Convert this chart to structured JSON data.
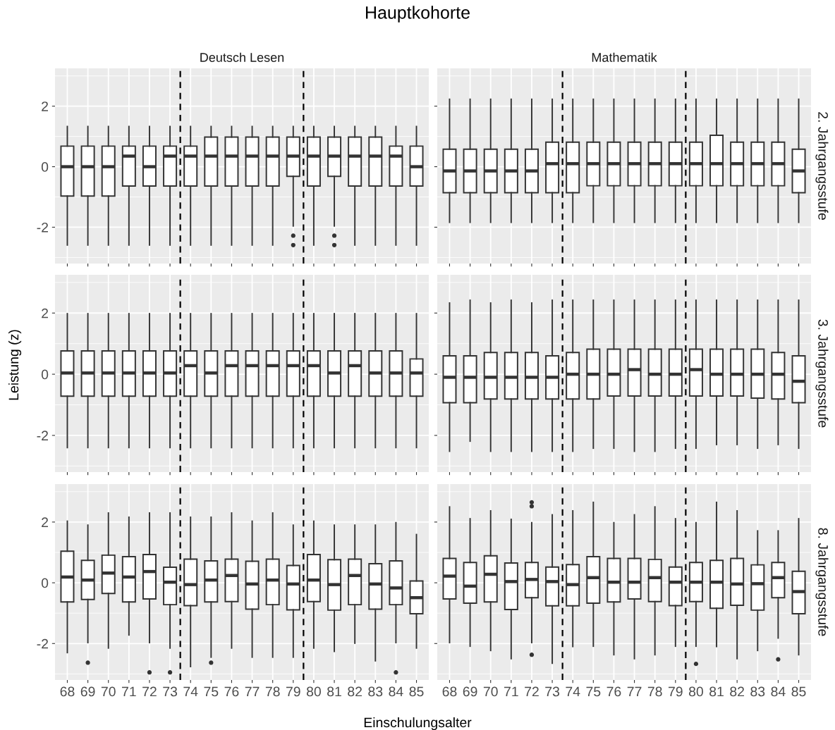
{
  "chart_data": [
    {
      "type": "box",
      "title": "Deutsch Lesen",
      "annotations": [
        "Hauptkohorte"
      ],
      "tick_labels": "y",
      "grid": true,
      "x": [
        68,
        69,
        70,
        71,
        72,
        73,
        74,
        75,
        76,
        77,
        78,
        79,
        80,
        81,
        82,
        83,
        84,
        85
      ],
      "xlim": [
        67.4,
        85.6
      ],
      "xticks": [
        68,
        69,
        70,
        71,
        72,
        73,
        74,
        75,
        76,
        77,
        78,
        79,
        80,
        81,
        82,
        83,
        84,
        85
      ],
      "ylim": [
        -3.2,
        3.25
      ],
      "yticks": [
        -2,
        0,
        2
      ],
      "ref_lines": [
        {
          "axis": "x",
          "value": 73.5,
          "line_style": "dashed",
          "color": "#000000"
        },
        {
          "axis": "x",
          "value": 79.5,
          "line_style": "dashed",
          "color": "#000000"
        }
      ],
      "boxes": [
        {
          "low": -2.59,
          "q1": -0.97,
          "median": 0,
          "q3": 0.68,
          "high": 1.33
        },
        {
          "low": -2.59,
          "q1": -0.97,
          "median": 0,
          "q3": 0.68,
          "high": 1.33
        },
        {
          "low": -2.59,
          "q1": -0.97,
          "median": 0,
          "q3": 0.68,
          "high": 1.33
        },
        {
          "low": -2.59,
          "q1": -0.64,
          "median": 0.35,
          "q3": 0.68,
          "high": 1.33
        },
        {
          "low": -2.59,
          "q1": -0.64,
          "median": 0,
          "q3": 0.68,
          "high": 1.33
        },
        {
          "low": -2.59,
          "q1": -0.64,
          "median": 0.35,
          "q3": 0.68,
          "high": 1.33
        },
        {
          "low": -2.59,
          "q1": -0.64,
          "median": 0.35,
          "q3": 0.68,
          "high": 1.33
        },
        {
          "low": -2.59,
          "q1": -0.64,
          "median": 0.35,
          "q3": 0.98,
          "high": 1.33
        },
        {
          "low": -2.59,
          "q1": -0.64,
          "median": 0.35,
          "q3": 0.98,
          "high": 1.33
        },
        {
          "low": -2.59,
          "q1": -0.64,
          "median": 0.35,
          "q3": 0.98,
          "high": 1.33
        },
        {
          "low": -2.59,
          "q1": -0.64,
          "median": 0.35,
          "q3": 0.98,
          "high": 1.33
        },
        {
          "low": -1.96,
          "q1": -0.32,
          "median": 0.35,
          "q3": 0.98,
          "high": 1.33,
          "outliers": [
            -2.28,
            -2.59
          ]
        },
        {
          "low": -2.59,
          "q1": -0.64,
          "median": 0.35,
          "q3": 0.98,
          "high": 1.33
        },
        {
          "low": -1.96,
          "q1": -0.32,
          "median": 0.35,
          "q3": 0.98,
          "high": 1.33,
          "outliers": [
            -2.28,
            -2.59
          ]
        },
        {
          "low": -2.59,
          "q1": -0.64,
          "median": 0.35,
          "q3": 0.98,
          "high": 1.33
        },
        {
          "low": -2.59,
          "q1": -0.64,
          "median": 0.35,
          "q3": 0.98,
          "high": 1.33
        },
        {
          "low": -2.59,
          "q1": -0.64,
          "median": 0.35,
          "q3": 0.68,
          "high": 1.33
        },
        {
          "low": -2.59,
          "q1": -0.64,
          "median": 0,
          "q3": 0.68,
          "high": 1.33
        }
      ]
    },
    {
      "type": "box",
      "title": "Mathematik",
      "y2label": "2. Jahrgangsstufe",
      "tick_labels": false,
      "grid": true,
      "x": [
        68,
        69,
        70,
        71,
        72,
        73,
        74,
        75,
        76,
        77,
        78,
        79,
        80,
        81,
        82,
        83,
        84,
        85
      ],
      "xlim": [
        67.4,
        85.6
      ],
      "xticks": [
        68,
        69,
        70,
        71,
        72,
        73,
        74,
        75,
        76,
        77,
        78,
        79,
        80,
        81,
        82,
        83,
        84,
        85
      ],
      "ylim": [
        -3.2,
        3.25
      ],
      "yticks": [
        -2,
        0,
        2
      ],
      "ref_lines": [
        {
          "axis": "x",
          "value": 73.5,
          "line_style": "dashed",
          "color": "#000000"
        },
        {
          "axis": "x",
          "value": 79.5,
          "line_style": "dashed",
          "color": "#000000"
        }
      ],
      "boxes": [
        {
          "low": -1.84,
          "q1": -0.86,
          "median": -0.14,
          "q3": 0.58,
          "high": 2.23
        },
        {
          "low": -1.84,
          "q1": -0.86,
          "median": -0.14,
          "q3": 0.58,
          "high": 2.23
        },
        {
          "low": -1.84,
          "q1": -0.86,
          "median": -0.14,
          "q3": 0.58,
          "high": 2.23
        },
        {
          "low": -1.84,
          "q1": -0.86,
          "median": -0.14,
          "q3": 0.58,
          "high": 2.23
        },
        {
          "low": -1.84,
          "q1": -0.86,
          "median": -0.14,
          "q3": 0.58,
          "high": 2.23
        },
        {
          "low": -1.84,
          "q1": -0.86,
          "median": 0.1,
          "q3": 0.81,
          "high": 2.23
        },
        {
          "low": -1.84,
          "q1": -0.86,
          "median": 0.1,
          "q3": 0.81,
          "high": 2.23
        },
        {
          "low": -1.84,
          "q1": -0.63,
          "median": 0.1,
          "q3": 0.81,
          "high": 2.23
        },
        {
          "low": -1.84,
          "q1": -0.63,
          "median": 0.1,
          "q3": 0.81,
          "high": 2.23
        },
        {
          "low": -1.84,
          "q1": -0.63,
          "median": 0.1,
          "q3": 0.81,
          "high": 2.23
        },
        {
          "low": -1.84,
          "q1": -0.63,
          "median": 0.1,
          "q3": 0.81,
          "high": 2.23
        },
        {
          "low": -1.84,
          "q1": -0.63,
          "median": 0.1,
          "q3": 0.81,
          "high": 2.23
        },
        {
          "low": -1.84,
          "q1": -0.63,
          "median": 0.1,
          "q3": 0.81,
          "high": 2.23
        },
        {
          "low": -1.84,
          "q1": -0.63,
          "median": 0.1,
          "q3": 1.04,
          "high": 2.23
        },
        {
          "low": -1.84,
          "q1": -0.63,
          "median": 0.1,
          "q3": 0.81,
          "high": 2.23
        },
        {
          "low": -1.84,
          "q1": -0.63,
          "median": 0.1,
          "q3": 0.81,
          "high": 2.23
        },
        {
          "low": -1.84,
          "q1": -0.63,
          "median": 0.1,
          "q3": 0.81,
          "high": 2.23
        },
        {
          "low": -1.84,
          "q1": -0.86,
          "median": -0.14,
          "q3": 0.58,
          "high": 2.23
        }
      ]
    },
    {
      "type": "box",
      "ylabel": "Leistung (z)",
      "tick_labels": "y",
      "grid": true,
      "x": [
        68,
        69,
        70,
        71,
        72,
        73,
        74,
        75,
        76,
        77,
        78,
        79,
        80,
        81,
        82,
        83,
        84,
        85
      ],
      "xlim": [
        67.4,
        85.6
      ],
      "xticks": [
        68,
        69,
        70,
        71,
        72,
        73,
        74,
        75,
        76,
        77,
        78,
        79,
        80,
        81,
        82,
        83,
        84,
        85
      ],
      "ylim": [
        -3.2,
        3.25
      ],
      "yticks": [
        -2,
        0,
        2
      ],
      "ref_lines": [
        {
          "axis": "x",
          "value": 73.5,
          "line_style": "dashed",
          "color": "#000000"
        },
        {
          "axis": "x",
          "value": 79.5,
          "line_style": "dashed",
          "color": "#000000"
        }
      ],
      "boxes": [
        {
          "low": -2.4,
          "q1": -0.72,
          "median": 0.04,
          "q3": 0.76,
          "high": 1.98
        },
        {
          "low": -2.4,
          "q1": -0.72,
          "median": 0.04,
          "q3": 0.76,
          "high": 1.98
        },
        {
          "low": -2.4,
          "q1": -0.72,
          "median": 0.04,
          "q3": 0.76,
          "high": 1.98
        },
        {
          "low": -2.4,
          "q1": -0.72,
          "median": 0.04,
          "q3": 0.76,
          "high": 1.98
        },
        {
          "low": -2.4,
          "q1": -0.72,
          "median": 0.04,
          "q3": 0.76,
          "high": 1.98
        },
        {
          "low": -2.4,
          "q1": -0.72,
          "median": 0.04,
          "q3": 0.76,
          "high": 1.98
        },
        {
          "low": -2.4,
          "q1": -0.72,
          "median": 0.28,
          "q3": 0.76,
          "high": 1.98
        },
        {
          "low": -2.4,
          "q1": -0.72,
          "median": 0.04,
          "q3": 0.76,
          "high": 1.98
        },
        {
          "low": -2.4,
          "q1": -0.72,
          "median": 0.28,
          "q3": 0.76,
          "high": 1.98
        },
        {
          "low": -2.4,
          "q1": -0.72,
          "median": 0.28,
          "q3": 0.76,
          "high": 1.98
        },
        {
          "low": -2.4,
          "q1": -0.72,
          "median": 0.28,
          "q3": 0.76,
          "high": 1.98
        },
        {
          "low": -2.4,
          "q1": -0.72,
          "median": 0.28,
          "q3": 0.76,
          "high": 1.98
        },
        {
          "low": -2.4,
          "q1": -0.72,
          "median": 0.28,
          "q3": 0.76,
          "high": 1.98
        },
        {
          "low": -2.4,
          "q1": -0.72,
          "median": 0.04,
          "q3": 0.76,
          "high": 1.98
        },
        {
          "low": -2.4,
          "q1": -0.72,
          "median": 0.28,
          "q3": 0.76,
          "high": 1.98
        },
        {
          "low": -2.4,
          "q1": -0.72,
          "median": 0.04,
          "q3": 0.76,
          "high": 1.98
        },
        {
          "low": -2.4,
          "q1": -0.72,
          "median": 0.04,
          "q3": 0.76,
          "high": 1.98
        },
        {
          "low": -2.4,
          "q1": -0.72,
          "median": 0.04,
          "q3": 0.5,
          "high": 1.98
        }
      ]
    },
    {
      "type": "box",
      "y2label": "3. Jahrgangsstufe",
      "tick_labels": false,
      "grid": true,
      "x": [
        68,
        69,
        70,
        71,
        72,
        73,
        74,
        75,
        76,
        77,
        78,
        79,
        80,
        81,
        82,
        83,
        84,
        85
      ],
      "xlim": [
        67.4,
        85.6
      ],
      "xticks": [
        68,
        69,
        70,
        71,
        72,
        73,
        74,
        75,
        76,
        77,
        78,
        79,
        80,
        81,
        82,
        83,
        84,
        85
      ],
      "ylim": [
        -3.2,
        3.25
      ],
      "yticks": [
        -2,
        0,
        2
      ],
      "ref_lines": [
        {
          "axis": "x",
          "value": 73.5,
          "line_style": "dashed",
          "color": "#000000"
        },
        {
          "axis": "x",
          "value": 79.5,
          "line_style": "dashed",
          "color": "#000000"
        }
      ],
      "boxes": [
        {
          "low": -2.52,
          "q1": -0.93,
          "median": -0.1,
          "q3": 0.6,
          "high": 2.33
        },
        {
          "low": -2.19,
          "q1": -0.93,
          "median": -0.1,
          "q3": 0.6,
          "high": 2.42
        },
        {
          "low": -2.52,
          "q1": -0.81,
          "median": -0.1,
          "q3": 0.71,
          "high": 2.33
        },
        {
          "low": -2.52,
          "q1": -0.81,
          "median": -0.1,
          "q3": 0.71,
          "high": 2.42
        },
        {
          "low": -2.52,
          "q1": -0.81,
          "median": -0.1,
          "q3": 0.71,
          "high": 2.33
        },
        {
          "low": -2.52,
          "q1": -0.81,
          "median": -0.1,
          "q3": 0.6,
          "high": 2.42
        },
        {
          "low": -2.52,
          "q1": -0.81,
          "median": 0,
          "q3": 0.71,
          "high": 2.42
        },
        {
          "low": -2.42,
          "q1": -0.81,
          "median": 0,
          "q3": 0.82,
          "high": 2.42
        },
        {
          "low": -2.42,
          "q1": -0.71,
          "median": 0,
          "q3": 0.82,
          "high": 2.42
        },
        {
          "low": -2.52,
          "q1": -0.71,
          "median": 0.15,
          "q3": 0.82,
          "high": 2.42
        },
        {
          "low": -2.52,
          "q1": -0.71,
          "median": 0,
          "q3": 0.82,
          "high": 2.42
        },
        {
          "low": -2.42,
          "q1": -0.71,
          "median": 0,
          "q3": 0.82,
          "high": 2.42
        },
        {
          "low": -2.42,
          "q1": -0.71,
          "median": 0.15,
          "q3": 0.82,
          "high": 2.42
        },
        {
          "low": -2.3,
          "q1": -0.71,
          "median": 0,
          "q3": 0.82,
          "high": 2.42
        },
        {
          "low": -2.3,
          "q1": -0.71,
          "median": 0,
          "q3": 0.82,
          "high": 2.42
        },
        {
          "low": -2.42,
          "q1": -0.78,
          "median": 0,
          "q3": 0.82,
          "high": 2.42
        },
        {
          "low": -2.3,
          "q1": -0.81,
          "median": 0,
          "q3": 0.71,
          "high": 2.42
        },
        {
          "low": -2.42,
          "q1": -0.93,
          "median": -0.23,
          "q3": 0.6,
          "high": 2.42
        }
      ]
    },
    {
      "type": "box",
      "xlabel": "Einschulungsalter",
      "grid": true,
      "x": [
        68,
        69,
        70,
        71,
        72,
        73,
        74,
        75,
        76,
        77,
        78,
        79,
        80,
        81,
        82,
        83,
        84,
        85
      ],
      "xlim": [
        67.4,
        85.6
      ],
      "xticks": [
        68,
        69,
        70,
        71,
        72,
        73,
        74,
        75,
        76,
        77,
        78,
        79,
        80,
        81,
        82,
        83,
        84,
        85
      ],
      "ylim": [
        -3.2,
        3.25
      ],
      "yticks": [
        -2,
        0,
        2
      ],
      "ref_lines": [
        {
          "axis": "x",
          "value": 73.5,
          "line_style": "dashed",
          "color": "#000000"
        },
        {
          "axis": "x",
          "value": 79.5,
          "line_style": "dashed",
          "color": "#000000"
        }
      ],
      "boxes": [
        {
          "low": -2.3,
          "q1": -0.63,
          "median": 0.19,
          "q3": 1.04,
          "high": 2.03
        },
        {
          "low": -1.97,
          "q1": -0.55,
          "median": 0.09,
          "q3": 0.74,
          "high": 1.9,
          "outliers": [
            -2.63
          ]
        },
        {
          "low": -2.15,
          "q1": -0.35,
          "median": 0.32,
          "q3": 0.91,
          "high": 2.3
        },
        {
          "low": -1.72,
          "q1": -0.63,
          "median": 0.19,
          "q3": 0.86,
          "high": 2.16
        },
        {
          "low": -1.97,
          "q1": -0.53,
          "median": 0.37,
          "q3": 0.93,
          "high": 2.3,
          "outliers": [
            -2.95
          ]
        },
        {
          "low": -2.15,
          "q1": -0.72,
          "median": 0.02,
          "q3": 0.51,
          "high": 2.3,
          "outliers": [
            -2.95
          ]
        },
        {
          "low": -2.76,
          "q1": -0.75,
          "median": -0.06,
          "q3": 0.78,
          "high": 2.16
        },
        {
          "low": -2.45,
          "q1": -0.63,
          "median": 0.09,
          "q3": 0.72,
          "high": 2.16,
          "outliers": [
            -2.63
          ]
        },
        {
          "low": -2.15,
          "q1": -0.62,
          "median": 0.24,
          "q3": 0.78,
          "high": 2.3
        },
        {
          "low": -2.45,
          "q1": -0.87,
          "median": -0.04,
          "q3": 0.71,
          "high": 2.03
        },
        {
          "low": -2.45,
          "q1": -0.72,
          "median": 0.09,
          "q3": 0.78,
          "high": 2.3
        },
        {
          "low": -2.45,
          "q1": -0.89,
          "median": -0.04,
          "q3": 0.57,
          "high": 1.9
        },
        {
          "low": -2.15,
          "q1": -0.62,
          "median": 0.09,
          "q3": 0.93,
          "high": 2.03
        },
        {
          "low": -2.26,
          "q1": -0.9,
          "median": -0.06,
          "q3": 0.76,
          "high": 1.9
        },
        {
          "low": -1.99,
          "q1": -0.72,
          "median": 0.24,
          "q3": 0.78,
          "high": 1.9
        },
        {
          "low": -2.57,
          "q1": -0.87,
          "median": -0.04,
          "q3": 0.63,
          "high": 1.9
        },
        {
          "low": -1.97,
          "q1": -0.72,
          "median": -0.17,
          "q3": 0.72,
          "high": 1.98,
          "outliers": [
            -2.95
          ]
        },
        {
          "low": -2.15,
          "q1": -1.02,
          "median": -0.49,
          "q3": 0.06,
          "high": 1.59
        }
      ]
    },
    {
      "type": "box",
      "y2label": "8. Jahrgangsstufe",
      "tick_labels": "x",
      "grid": true,
      "x": [
        68,
        69,
        70,
        71,
        72,
        73,
        74,
        75,
        76,
        77,
        78,
        79,
        80,
        81,
        82,
        83,
        84,
        85
      ],
      "xlim": [
        67.4,
        85.6
      ],
      "xticks": [
        68,
        69,
        70,
        71,
        72,
        73,
        74,
        75,
        76,
        77,
        78,
        79,
        80,
        81,
        82,
        83,
        84,
        85
      ],
      "ylim": [
        -3.2,
        3.25
      ],
      "yticks": [
        -2,
        0,
        2
      ],
      "ref_lines": [
        {
          "axis": "x",
          "value": 73.5,
          "line_style": "dashed",
          "color": "#000000"
        },
        {
          "axis": "x",
          "value": 79.5,
          "line_style": "dashed",
          "color": "#000000"
        }
      ],
      "boxes": [
        {
          "low": -1.97,
          "q1": -0.53,
          "median": 0.22,
          "q3": 0.8,
          "high": 2.5
        },
        {
          "low": -2.09,
          "q1": -0.67,
          "median": -0.11,
          "q3": 0.67,
          "high": 2.11
        },
        {
          "low": -2.23,
          "q1": -0.63,
          "median": 0.28,
          "q3": 0.89,
          "high": 2.37
        },
        {
          "low": -2.5,
          "q1": -0.88,
          "median": 0.04,
          "q3": 0.65,
          "high": 2.09
        },
        {
          "low": -1.97,
          "q1": -0.49,
          "median": 0.11,
          "q3": 0.67,
          "high": 1.98,
          "outliers": [
            2.65,
            2.52,
            -2.37
          ]
        },
        {
          "low": -2.65,
          "q1": -0.76,
          "median": 0.04,
          "q3": 0.52,
          "high": 2.24
        },
        {
          "low": -2.1,
          "q1": -0.76,
          "median": -0.06,
          "q3": 0.6,
          "high": 2.37
        },
        {
          "low": -2.09,
          "q1": -0.67,
          "median": 0.17,
          "q3": 0.86,
          "high": 2.65
        },
        {
          "low": -2.37,
          "q1": -0.63,
          "median": 0.02,
          "q3": 0.8,
          "high": 1.98
        },
        {
          "low": -2.5,
          "q1": -0.53,
          "median": 0.02,
          "q3": 0.8,
          "high": 2.24
        },
        {
          "low": -2.37,
          "q1": -0.62,
          "median": 0.17,
          "q3": 0.77,
          "high": 2.5
        },
        {
          "low": -2.09,
          "q1": -0.75,
          "median": 0.02,
          "q3": 0.52,
          "high": 2.11
        },
        {
          "low": -2.09,
          "q1": -0.62,
          "median": 0.02,
          "q3": 0.67,
          "high": 1.98,
          "outliers": [
            -2.67
          ]
        },
        {
          "low": -2.1,
          "q1": -0.84,
          "median": 0.02,
          "q3": 0.74,
          "high": 2.65
        },
        {
          "low": -2.5,
          "q1": -0.74,
          "median": -0.04,
          "q3": 0.8,
          "high": 2.37
        },
        {
          "low": -2.23,
          "q1": -0.9,
          "median": -0.03,
          "q3": 0.59,
          "high": 1.71
        },
        {
          "low": -1.82,
          "q1": -0.49,
          "median": 0.17,
          "q3": 0.67,
          "high": 1.71,
          "outliers": [
            -2.52
          ]
        },
        {
          "low": -2.37,
          "q1": -1.02,
          "median": -0.29,
          "q3": 0.38,
          "high": 2.11
        }
      ]
    }
  ]
}
